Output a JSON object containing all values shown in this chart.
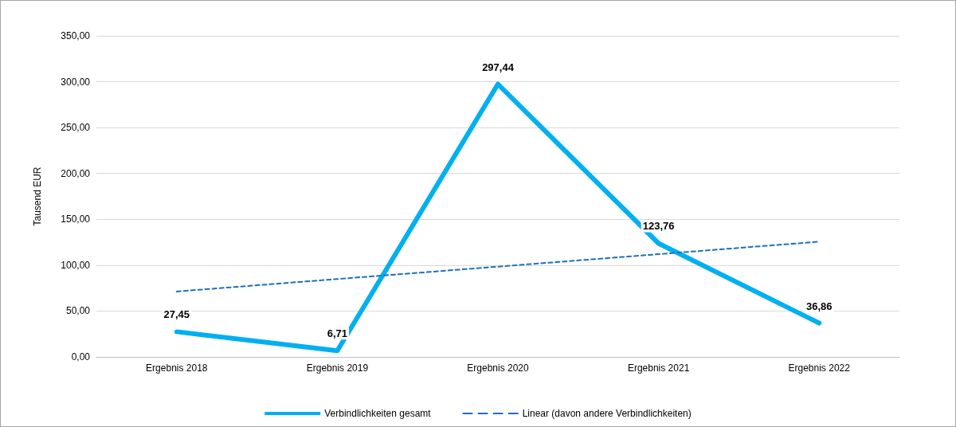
{
  "chart_data": {
    "type": "line",
    "ylabel": "Tausend EUR",
    "categories": [
      "Ergebnis 2018",
      "Ergebnis 2019",
      "Ergebnis 2020",
      "Ergebnis 2021",
      "Ergebnis 2022"
    ],
    "series": [
      {
        "name": "Verbindlichkeiten gesamt",
        "color": "#00b0f0",
        "values": [
          27.45,
          6.71,
          297.44,
          123.76,
          36.86
        ],
        "value_labels": [
          "27,45",
          "6,71",
          "297,44",
          "123,76",
          "36,86"
        ],
        "line_style": "solid"
      },
      {
        "name": "Linear (davon andere Verbindlichkeiten)",
        "color": "#1f6fbf",
        "values": [
          71.3,
          84.9,
          98.4,
          112.0,
          125.6
        ],
        "line_style": "dashed"
      }
    ],
    "ylim": [
      0,
      350
    ],
    "yticks": [
      {
        "value": 0,
        "label": "0,00"
      },
      {
        "value": 50,
        "label": "50,00"
      },
      {
        "value": 100,
        "label": "100,00"
      },
      {
        "value": 150,
        "label": "150,00"
      },
      {
        "value": 200,
        "label": "200,00"
      },
      {
        "value": 250,
        "label": "250,00"
      },
      {
        "value": 300,
        "label": "300,00"
      },
      {
        "value": 350,
        "label": "350,00"
      }
    ],
    "grid": "y",
    "legend": "bottom",
    "marker": "none"
  }
}
